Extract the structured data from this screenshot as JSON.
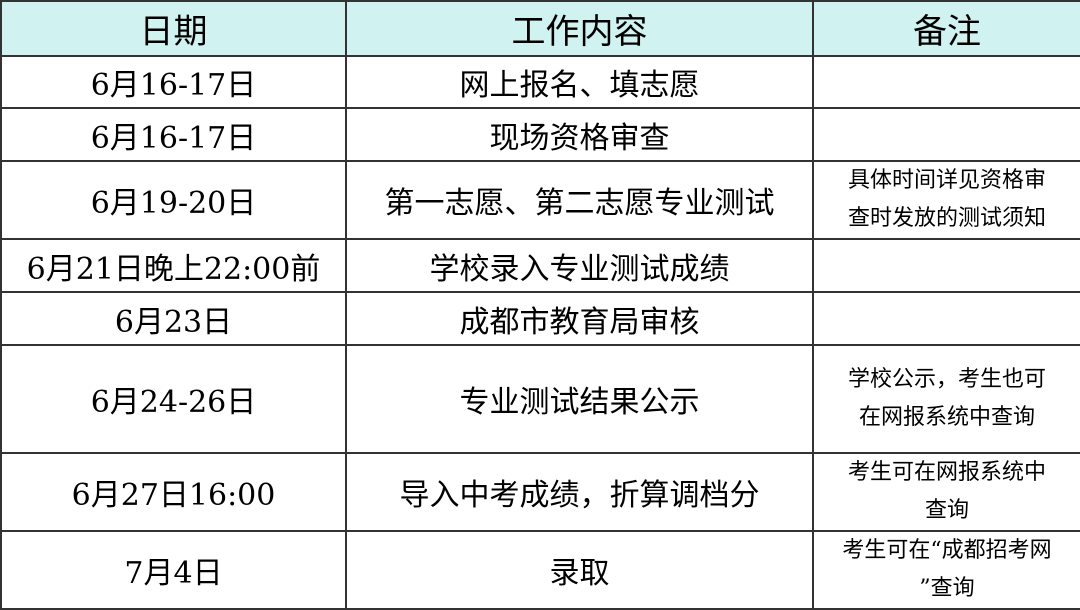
{
  "header": {
    "date": "日期",
    "content": "工作内容",
    "note": "备注"
  },
  "rows": [
    {
      "date": "6月16-17日",
      "content": "网上报名、填志愿",
      "note": [
        "",
        ""
      ]
    },
    {
      "date": "6月16-17日",
      "content": "现场资格审查",
      "note": [
        "",
        ""
      ]
    },
    {
      "date": "6月19-20日",
      "content": "第一志愿、第二志愿专业测试",
      "note": [
        "具体时间详见资格审",
        "查时发放的测试须知"
      ]
    },
    {
      "date": "6月21日晚上22:00前",
      "content": "学校录入专业测试成绩",
      "note": [
        "",
        ""
      ]
    },
    {
      "date": "6月23日",
      "content": "成都市教育局审核",
      "note": [
        "",
        ""
      ]
    },
    {
      "date": "6月24-26日",
      "content": "专业测试结果公示",
      "note": [
        "学校公示，考生也可",
        "在网报系统中查询"
      ]
    },
    {
      "date": "6月27日16:00",
      "content": "导入中考成绩，折算调档分",
      "note": [
        "考生可在网报系统中",
        "查询"
      ]
    },
    {
      "date": "7月4日",
      "content": "录取",
      "note": [
        "考生可在“成都招考网",
        "”查询"
      ]
    }
  ],
  "colors": {
    "header_bg": "#d0f2f0",
    "border": "#333333"
  }
}
